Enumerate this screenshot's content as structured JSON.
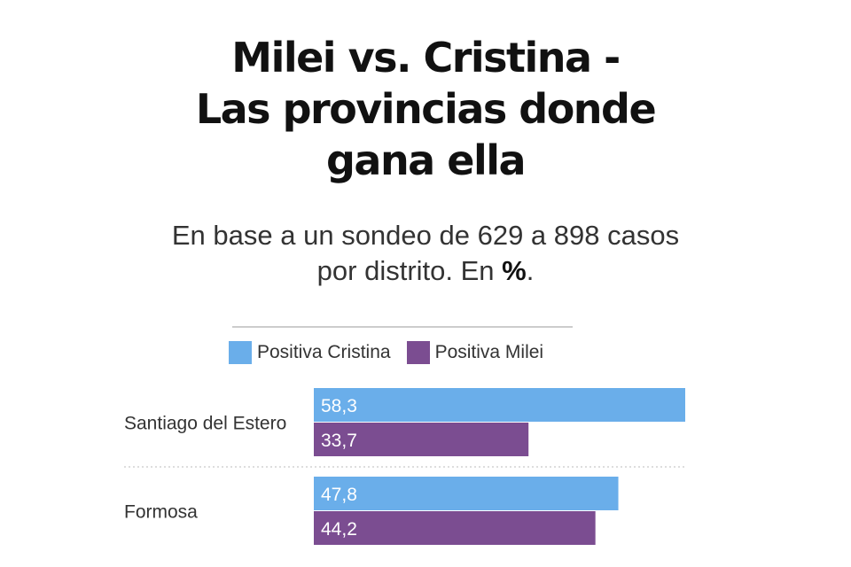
{
  "header": {
    "title_lines": [
      "Milei vs. Cristina -",
      "Las provincias donde",
      "gana ella"
    ],
    "subtitle_line1": "En base a un sondeo de 629 a 898 casos",
    "subtitle_line2_prefix": "por distrito. En ",
    "subtitle_line2_bold": "%",
    "subtitle_line2_suffix": "."
  },
  "legend": {
    "items": [
      {
        "label": "Positiva Cristina",
        "color": "#6aaeea"
      },
      {
        "label": "Positiva Milei",
        "color": "#7b4d91"
      }
    ]
  },
  "chart_data": {
    "type": "bar",
    "orientation": "horizontal",
    "categories": [
      "Santiago del Estero",
      "Formosa"
    ],
    "series": [
      {
        "name": "Positiva Cristina",
        "color": "#6aaeea",
        "values": [
          58.3,
          47.8
        ],
        "labels": [
          "58,3",
          "47,8"
        ]
      },
      {
        "name": "Positiva Milei",
        "color": "#7b4d91",
        "values": [
          33.7,
          44.2
        ],
        "labels": [
          "33,7",
          "44,2"
        ]
      }
    ],
    "xlim": [
      0,
      58.3
    ],
    "grid": false,
    "legend": "top-center",
    "title": "Milei vs. Cristina - Las provincias donde gana ella",
    "subtitle": "En base a un sondeo de 629 a 898 casos por distrito. En %."
  }
}
